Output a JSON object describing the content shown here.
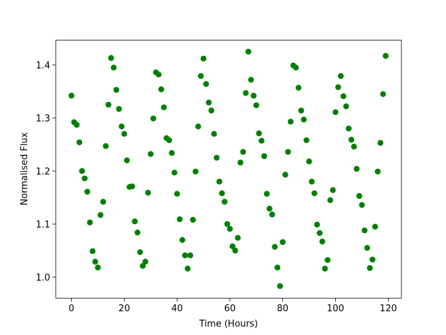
{
  "chart_data": {
    "type": "scatter",
    "x_label": "Time (Hours)",
    "y_label": "Normalised Flux",
    "color": "#008000",
    "x": [
      0,
      1,
      2,
      3,
      4,
      5,
      6,
      7,
      8,
      9,
      10,
      11,
      12,
      13,
      14,
      15,
      16,
      17,
      18,
      19,
      20,
      21,
      22,
      23,
      24,
      25,
      26,
      27,
      28,
      29,
      30,
      31,
      32,
      33,
      34,
      35,
      36,
      37,
      38,
      39,
      40,
      41,
      42,
      43,
      44,
      45,
      46,
      47,
      48,
      49,
      50,
      51,
      52,
      53,
      54,
      55,
      56,
      57,
      58,
      59,
      60,
      61,
      62,
      63,
      64,
      65,
      66,
      67,
      68,
      69,
      70,
      71,
      72,
      73,
      74,
      75,
      76,
      77,
      78,
      79,
      80,
      81,
      82,
      83,
      84,
      85,
      86,
      87,
      88,
      89,
      90,
      91,
      92,
      93,
      94,
      95,
      96,
      97,
      98,
      99,
      100,
      101,
      102,
      103,
      104,
      105,
      106,
      107,
      108,
      109,
      110,
      111,
      112,
      113,
      114,
      115,
      116,
      117,
      118,
      119
    ],
    "values": [
      1.342,
      1.292,
      1.287,
      1.254,
      1.2,
      1.186,
      1.161,
      1.103,
      1.049,
      1.029,
      1.018,
      1.117,
      1.142,
      1.247,
      1.325,
      1.413,
      1.395,
      1.353,
      1.317,
      1.284,
      1.27,
      1.22,
      1.17,
      1.171,
      1.105,
      1.084,
      1.047,
      1.021,
      1.029,
      1.159,
      1.232,
      1.299,
      1.386,
      1.382,
      1.354,
      1.32,
      1.262,
      1.258,
      1.234,
      1.197,
      1.157,
      1.109,
      1.07,
      1.041,
      1.016,
      1.041,
      1.108,
      1.199,
      1.284,
      1.379,
      1.412,
      1.364,
      1.329,
      1.314,
      1.27,
      1.225,
      1.18,
      1.158,
      1.142,
      1.1,
      1.091,
      1.058,
      1.05,
      1.074,
      1.216,
      1.236,
      1.347,
      1.425,
      1.372,
      1.342,
      1.324,
      1.271,
      1.257,
      1.228,
      1.157,
      1.129,
      1.118,
      1.057,
      1.018,
      0.983,
      1.066,
      1.193,
      1.236,
      1.293,
      1.399,
      1.395,
      1.357,
      1.314,
      1.297,
      1.258,
      1.218,
      1.18,
      1.158,
      1.099,
      1.083,
      1.067,
      1.016,
      1.032,
      1.145,
      1.164,
      1.311,
      1.358,
      1.379,
      1.341,
      1.322,
      1.28,
      1.259,
      1.246,
      1.204,
      1.153,
      1.136,
      1.088,
      1.055,
      1.017,
      1.033,
      1.095,
      1.199,
      1.253,
      1.345,
      1.417
    ],
    "xlim": [
      -5.95,
      124.95
    ],
    "xticks": [
      0,
      20,
      40,
      60,
      80,
      100,
      120
    ],
    "ylim": [
      0.9603,
      1.4466
    ],
    "yticks": [
      {
        "value": 1,
        "label": "1.0"
      },
      1.1,
      1.2,
      1.3,
      1.4
    ],
    "grid": false
  }
}
